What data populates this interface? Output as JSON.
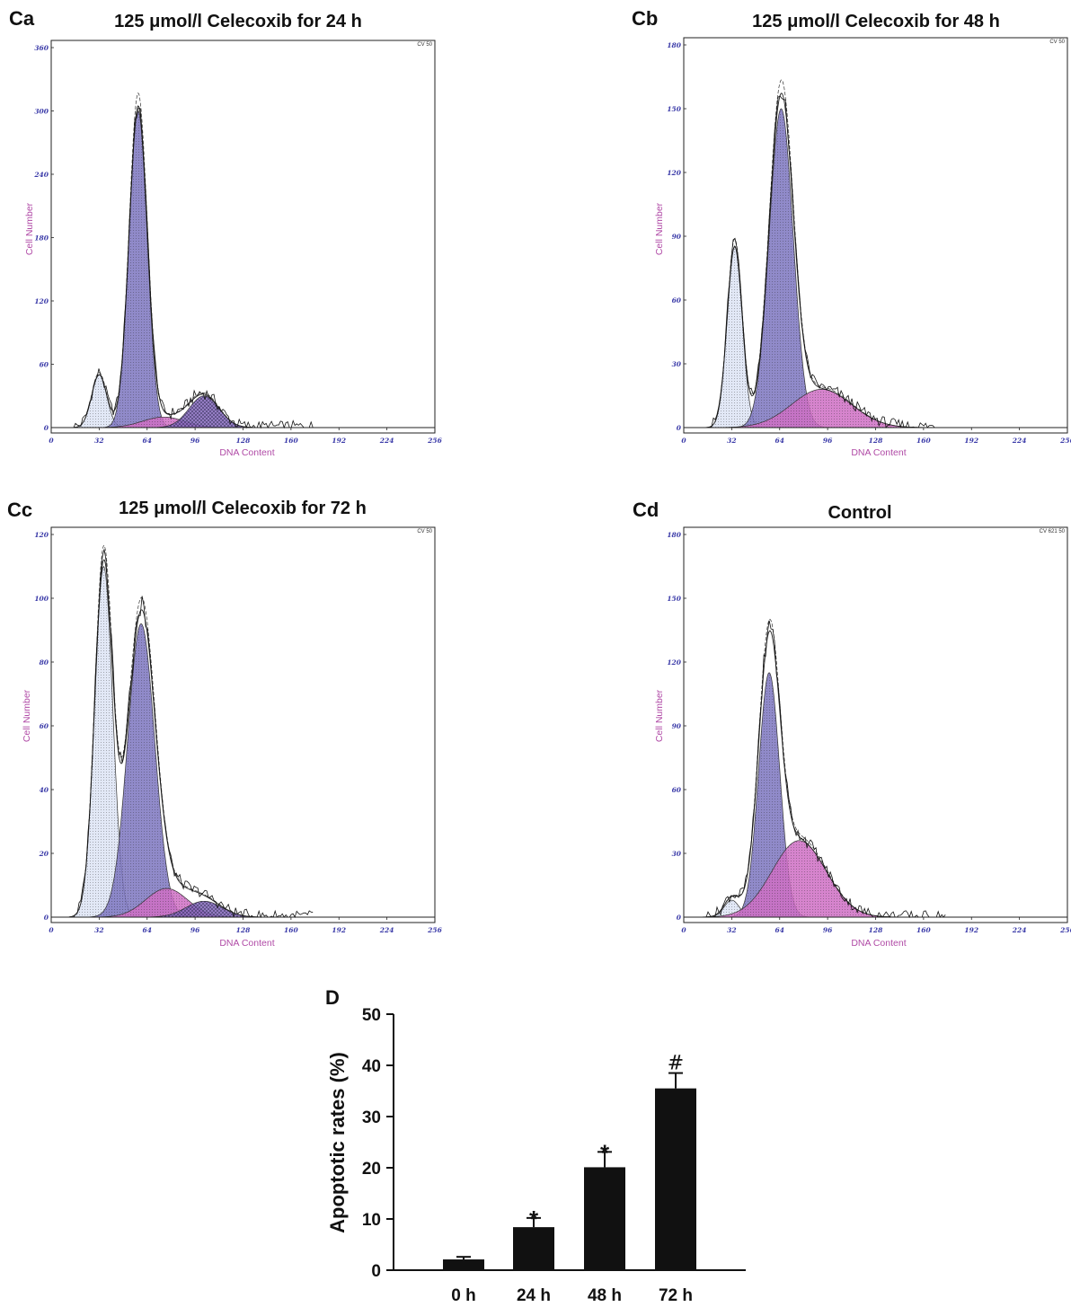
{
  "chart_data": [
    {
      "id": "Ca",
      "type": "area",
      "panel_label": "Ca",
      "title": "125 μmol/l Celecoxib for 24 h",
      "xlabel": "DNA Content",
      "ylabel": "Cell Number",
      "tag": "CV 50",
      "xlim": [
        0,
        256
      ],
      "ylim": [
        0,
        360
      ],
      "xticks": [
        0,
        32,
        64,
        96,
        128,
        160,
        192,
        224,
        256
      ],
      "yticks": [
        0,
        60,
        120,
        180,
        240,
        300,
        360
      ],
      "peaks": [
        {
          "name": "apoptotic",
          "mu": 32,
          "sigma": 5,
          "amp": 50
        },
        {
          "name": "G0/G1",
          "mu": 58,
          "sigma": 6,
          "amp": 300
        },
        {
          "name": "S",
          "mu": 75,
          "sigma": 14,
          "amp": 10
        },
        {
          "name": "G2/M",
          "mu": 102,
          "sigma": 10,
          "amp": 30
        }
      ]
    },
    {
      "id": "Cb",
      "type": "area",
      "panel_label": "Cb",
      "title": "125 μmol/l Celecoxib for 48 h",
      "xlabel": "DNA Content",
      "ylabel": "Cell Number",
      "tag": "CV 50",
      "xlim": [
        0,
        256
      ],
      "ylim": [
        0,
        180
      ],
      "xticks": [
        0,
        32,
        64,
        96,
        128,
        160,
        192,
        224,
        256
      ],
      "yticks": [
        0,
        30,
        60,
        90,
        120,
        150,
        180
      ],
      "peaks": [
        {
          "name": "apoptotic",
          "mu": 34,
          "sigma": 5,
          "amp": 85
        },
        {
          "name": "G0/G1",
          "mu": 65,
          "sigma": 8,
          "amp": 150
        },
        {
          "name": "S",
          "mu": 92,
          "sigma": 20,
          "amp": 18
        }
      ]
    },
    {
      "id": "Cc",
      "type": "area",
      "panel_label": "Cc",
      "title": "125 μmol/l Celecoxib for 72 h",
      "xlabel": "DNA Content",
      "ylabel": "Cell Number",
      "tag": "CV 50",
      "xlim": [
        0,
        256
      ],
      "ylim": [
        0,
        120
      ],
      "xticks": [
        0,
        32,
        64,
        96,
        128,
        160,
        192,
        224,
        256
      ],
      "yticks": [
        0,
        20,
        40,
        60,
        80,
        100,
        120
      ],
      "peaks": [
        {
          "name": "apoptotic",
          "mu": 35,
          "sigma": 6,
          "amp": 110
        },
        {
          "name": "G0/G1",
          "mu": 60,
          "sigma": 9,
          "amp": 92
        },
        {
          "name": "S",
          "mu": 77,
          "sigma": 14,
          "amp": 9
        },
        {
          "name": "G2/M",
          "mu": 102,
          "sigma": 12,
          "amp": 5
        }
      ]
    },
    {
      "id": "Cd",
      "type": "area",
      "panel_label": "Cd",
      "title": "Control",
      "xlabel": "DNA Content",
      "ylabel": "Cell Number",
      "tag": "CV 621 50",
      "xlim": [
        0,
        256
      ],
      "ylim": [
        0,
        180
      ],
      "xticks": [
        0,
        32,
        64,
        96,
        128,
        160,
        192,
        224,
        256
      ],
      "yticks": [
        0,
        30,
        60,
        90,
        120,
        150,
        180
      ],
      "peaks": [
        {
          "name": "apoptotic",
          "mu": 32,
          "sigma": 5,
          "amp": 8
        },
        {
          "name": "G0/G1",
          "mu": 57,
          "sigma": 7,
          "amp": 115
        },
        {
          "name": "S",
          "mu": 77,
          "sigma": 18,
          "amp": 36
        }
      ]
    },
    {
      "id": "D",
      "type": "bar",
      "panel_label": "D",
      "title": "",
      "xlabel": "",
      "ylabel": "Apoptotic rates (%)",
      "ylim": [
        0,
        50
      ],
      "yticks": [
        0,
        10,
        20,
        30,
        40,
        50
      ],
      "categories": [
        "0 h",
        "24 h",
        "48 h",
        "72 h"
      ],
      "values": [
        2.1,
        8.4,
        20.1,
        35.5
      ],
      "errors": [
        0.5,
        1.8,
        3.0,
        3.0
      ],
      "annotations": [
        "",
        "*",
        "*",
        "#"
      ]
    }
  ],
  "colors": {
    "apoptotic": "#dde4f4",
    "g1": "#7d75c0",
    "s": "#cf6fc4",
    "g2": "#8a6cc2",
    "tick": "#3a3aa8",
    "axlabel": "#b04aa6",
    "bar": "#111111"
  }
}
